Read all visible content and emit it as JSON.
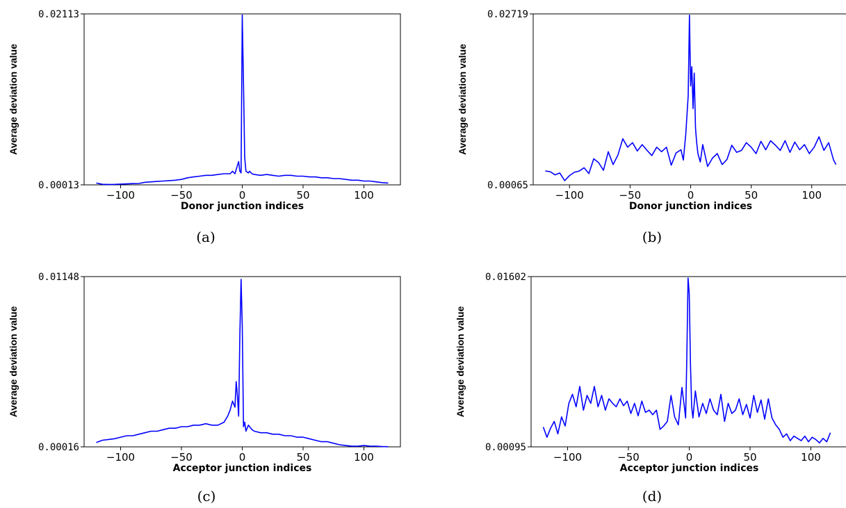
{
  "chart_data": [
    {
      "type": "line",
      "caption": "(a)",
      "xlabel": "Donor junction indices",
      "ylabel": "Average deviation value",
      "xlim": [
        -130,
        130
      ],
      "ylim": [
        0.00013,
        0.02113
      ],
      "yticks": [
        "0.02113",
        "0.00013"
      ],
      "xticks": [
        -100,
        -50,
        0,
        50,
        100
      ],
      "line_color": "#0000ff",
      "series": [
        {
          "x": [
            -120,
            -115,
            -110,
            -105,
            -100,
            -95,
            -90,
            -85,
            -80,
            -75,
            -70,
            -65,
            -60,
            -55,
            -50,
            -45,
            -40,
            -35,
            -30,
            -25,
            -20,
            -15,
            -10,
            -8,
            -6,
            -4,
            -3,
            -2,
            -1,
            0,
            1,
            2,
            3,
            4,
            5,
            6,
            8,
            10,
            15,
            20,
            25,
            30,
            35,
            40,
            45,
            50,
            55,
            60,
            65,
            70,
            75,
            80,
            85,
            90,
            95,
            100,
            105,
            110,
            115,
            120
          ],
          "y": [
            0.00035,
            0.0002,
            0.00018,
            0.00019,
            0.00022,
            0.00025,
            0.00028,
            0.0003,
            0.00045,
            0.0005,
            0.00055,
            0.0006,
            0.00065,
            0.0007,
            0.0008,
            0.001,
            0.0011,
            0.0012,
            0.0013,
            0.0013,
            0.0014,
            0.0015,
            0.0015,
            0.0018,
            0.0015,
            0.0025,
            0.003,
            0.0018,
            0.0016,
            0.021,
            0.0125,
            0.0035,
            0.0018,
            0.0017,
            0.0016,
            0.0018,
            0.0015,
            0.0014,
            0.0013,
            0.0014,
            0.0013,
            0.0012,
            0.0013,
            0.0013,
            0.0012,
            0.0012,
            0.0011,
            0.0011,
            0.001,
            0.001,
            0.0009,
            0.0009,
            0.0008,
            0.0007,
            0.0007,
            0.0006,
            0.0006,
            0.0005,
            0.0004,
            0.00035
          ]
        }
      ]
    },
    {
      "type": "line",
      "caption": "(b)",
      "xlabel": "Donor junction indices",
      "ylabel": "Average deviation value",
      "xlim": [
        -130,
        130
      ],
      "ylim": [
        0.00065,
        0.02719
      ],
      "yticks": [
        "0.02719",
        "0.00065"
      ],
      "xticks": [
        -100,
        -50,
        0,
        50,
        100
      ],
      "line_color": "#0000ff",
      "series": [
        {
          "x": [
            -120,
            -116,
            -112,
            -108,
            -104,
            -100,
            -96,
            -92,
            -88,
            -84,
            -80,
            -76,
            -72,
            -68,
            -64,
            -60,
            -56,
            -52,
            -48,
            -44,
            -40,
            -36,
            -32,
            -28,
            -24,
            -20,
            -16,
            -12,
            -8,
            -6,
            -4,
            -2,
            -1,
            0,
            1,
            2,
            3,
            4,
            5,
            6,
            8,
            10,
            14,
            18,
            22,
            26,
            30,
            34,
            38,
            42,
            46,
            50,
            54,
            58,
            62,
            66,
            70,
            74,
            78,
            82,
            86,
            90,
            94,
            98,
            102,
            106,
            110,
            114,
            118,
            120
          ],
          "y": [
            0.0028,
            0.0027,
            0.0022,
            0.0025,
            0.0013,
            0.0021,
            0.0026,
            0.0028,
            0.0033,
            0.0024,
            0.0047,
            0.0041,
            0.0029,
            0.0058,
            0.0038,
            0.0053,
            0.0078,
            0.0065,
            0.0072,
            0.0059,
            0.0069,
            0.006,
            0.0052,
            0.0065,
            0.0058,
            0.0065,
            0.0037,
            0.0056,
            0.0061,
            0.0045,
            0.0085,
            0.0145,
            0.027,
            0.016,
            0.019,
            0.0125,
            0.018,
            0.0095,
            0.0072,
            0.0055,
            0.0042,
            0.0069,
            0.0035,
            0.0048,
            0.0055,
            0.0038,
            0.0046,
            0.0068,
            0.0057,
            0.006,
            0.0072,
            0.0065,
            0.0055,
            0.0074,
            0.0061,
            0.0075,
            0.0068,
            0.006,
            0.0075,
            0.0057,
            0.0073,
            0.0061,
            0.0069,
            0.0055,
            0.0065,
            0.0081,
            0.006,
            0.0072,
            0.0045,
            0.0038
          ]
        }
      ]
    },
    {
      "type": "line",
      "caption": "(c)",
      "xlabel": "Acceptor junction indices",
      "ylabel": "Average deviation value",
      "xlim": [
        -130,
        130
      ],
      "ylim": [
        0.00016,
        0.01148
      ],
      "yticks": [
        "0.01148",
        "0.00016"
      ],
      "xticks": [
        -100,
        -50,
        0,
        50,
        100
      ],
      "line_color": "#0000ff",
      "series": [
        {
          "x": [
            -120,
            -115,
            -110,
            -105,
            -100,
            -95,
            -90,
            -85,
            -80,
            -75,
            -70,
            -65,
            -60,
            -55,
            -50,
            -45,
            -40,
            -35,
            -30,
            -25,
            -20,
            -15,
            -12,
            -10,
            -8,
            -6,
            -5,
            -4,
            -3,
            -2,
            -1,
            0,
            1,
            2,
            3,
            5,
            8,
            10,
            15,
            20,
            25,
            30,
            35,
            40,
            45,
            50,
            55,
            60,
            65,
            70,
            75,
            80,
            85,
            90,
            95,
            100,
            105,
            110,
            115,
            120
          ],
          "y": [
            0.00045,
            0.0006,
            0.00065,
            0.0007,
            0.0008,
            0.0009,
            0.0009,
            0.001,
            0.0011,
            0.0012,
            0.0012,
            0.0013,
            0.0014,
            0.0014,
            0.0015,
            0.0015,
            0.0016,
            0.0016,
            0.0017,
            0.0016,
            0.0016,
            0.0018,
            0.0022,
            0.0026,
            0.0032,
            0.0028,
            0.0045,
            0.0036,
            0.0022,
            0.0075,
            0.0113,
            0.0082,
            0.0015,
            0.0018,
            0.0012,
            0.0016,
            0.0013,
            0.0012,
            0.0011,
            0.0011,
            0.001,
            0.001,
            0.0009,
            0.0009,
            0.0008,
            0.0008,
            0.0007,
            0.0006,
            0.0005,
            0.0005,
            0.0004,
            0.0003,
            0.00025,
            0.0002,
            0.0002,
            0.00025,
            0.0002,
            0.0002,
            0.00018,
            0.00017
          ]
        }
      ]
    },
    {
      "type": "line",
      "caption": "(d)",
      "xlabel": "Acceptor junction indices",
      "ylabel": "Average deviation value",
      "xlim": [
        -130,
        130
      ],
      "ylim": [
        0.00095,
        0.01602
      ],
      "yticks": [
        "0.01602",
        "0.00095"
      ],
      "xticks": [
        -100,
        -50,
        0,
        50,
        100
      ],
      "line_color": "#0000ff",
      "series": [
        {
          "x": [
            -120,
            -117,
            -114,
            -111,
            -108,
            -105,
            -102,
            -99,
            -96,
            -93,
            -90,
            -87,
            -84,
            -81,
            -78,
            -75,
            -72,
            -69,
            -66,
            -63,
            -60,
            -57,
            -54,
            -51,
            -48,
            -45,
            -42,
            -39,
            -36,
            -33,
            -30,
            -27,
            -24,
            -21,
            -18,
            -15,
            -12,
            -9,
            -6,
            -4,
            -3,
            -2,
            -1,
            0,
            1,
            2,
            3,
            5,
            8,
            11,
            14,
            17,
            20,
            23,
            26,
            29,
            32,
            35,
            38,
            41,
            44,
            47,
            50,
            53,
            56,
            59,
            62,
            65,
            68,
            71,
            74,
            77,
            80,
            83,
            86,
            89,
            92,
            95,
            98,
            101,
            104,
            107,
            110,
            113,
            116
          ],
          "y": [
            0.0027,
            0.0018,
            0.0026,
            0.0032,
            0.0021,
            0.0036,
            0.0028,
            0.0048,
            0.0056,
            0.0045,
            0.0063,
            0.0042,
            0.0055,
            0.0048,
            0.0063,
            0.0045,
            0.0055,
            0.0042,
            0.0052,
            0.0048,
            0.0045,
            0.0052,
            0.0046,
            0.005,
            0.0039,
            0.0048,
            0.0037,
            0.005,
            0.004,
            0.0042,
            0.0038,
            0.0042,
            0.0025,
            0.0028,
            0.0032,
            0.0055,
            0.0036,
            0.0029,
            0.0062,
            0.0045,
            0.0035,
            0.0088,
            0.0159,
            0.0145,
            0.0082,
            0.0045,
            0.0035,
            0.0059,
            0.0036,
            0.0048,
            0.0039,
            0.0052,
            0.0042,
            0.0038,
            0.0056,
            0.0032,
            0.0048,
            0.0039,
            0.0042,
            0.0052,
            0.0038,
            0.0047,
            0.0035,
            0.0055,
            0.004,
            0.0051,
            0.0034,
            0.0052,
            0.0035,
            0.0029,
            0.0025,
            0.0018,
            0.0021,
            0.0015,
            0.0019,
            0.0017,
            0.0015,
            0.0019,
            0.0014,
            0.0018,
            0.0016,
            0.0013,
            0.0017,
            0.0014,
            0.0022
          ]
        }
      ]
    }
  ]
}
